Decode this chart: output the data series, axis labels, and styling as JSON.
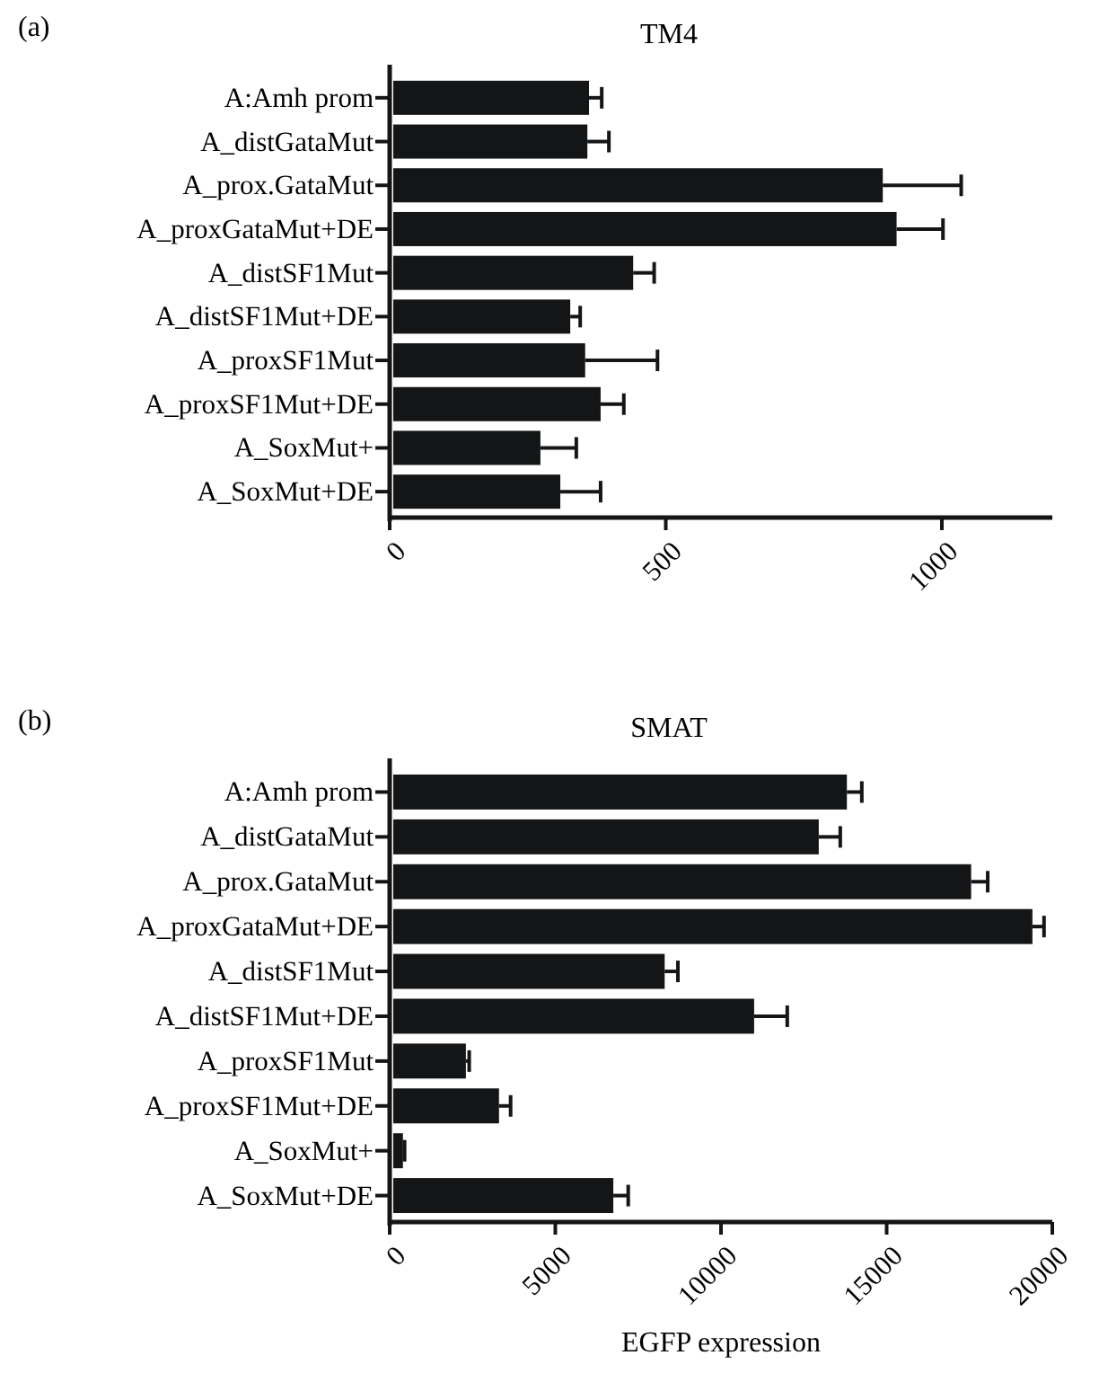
{
  "chart_data": [
    {
      "type": "bar",
      "orientation": "horizontal",
      "title": "TM4",
      "annotations": [
        "(a)"
      ],
      "categories": [
        "A:Amh prom",
        "A_distGataMut",
        "A_prox.GataMut",
        "A_proxGataMut+DE",
        "A_distSF1Mut",
        "A_distSF1Mut+DE",
        "A_proxSF1Mut",
        "A_proxSF1Mut+DE",
        "A_SoxMut+",
        "A_SoxMut+DE"
      ],
      "values": [
        361,
        358,
        893,
        918,
        441,
        327,
        354,
        382,
        273,
        309
      ],
      "errors": [
        [
          361,
          384
        ],
        [
          358,
          397
        ],
        [
          893,
          1035
        ],
        [
          918,
          1002
        ],
        [
          441,
          479
        ],
        [
          327,
          345
        ],
        [
          354,
          485
        ],
        [
          382,
          424
        ],
        [
          273,
          338
        ],
        [
          309,
          382
        ]
      ],
      "color": "#141517",
      "xlim": [
        0,
        1200
      ],
      "xticks": [
        0,
        500,
        1000
      ],
      "grid": false
    },
    {
      "type": "bar",
      "orientation": "horizontal",
      "title": "SMAT",
      "annotations": [
        "(b)"
      ],
      "xlabel": "EGFP expression",
      "categories": [
        "A:Amh prom",
        "A_distGataMut",
        "A_prox.GataMut",
        "A_proxGataMut+DE",
        "A_distSF1Mut",
        "A_distSF1Mut+DE",
        "A_proxSF1Mut",
        "A_proxSF1Mut+DE",
        "A_SoxMut+",
        "A_SoxMut+DE"
      ],
      "values": [
        13800,
        12950,
        17550,
        19400,
        8300,
        11000,
        2300,
        3300,
        400,
        6750
      ],
      "errors": [
        [
          13800,
          14250
        ],
        [
          12950,
          13600
        ],
        [
          17550,
          18050
        ],
        [
          19400,
          19750
        ],
        [
          8300,
          8700
        ],
        [
          11000,
          12000
        ],
        [
          2300,
          2400
        ],
        [
          3300,
          3650
        ],
        [
          400,
          450
        ],
        [
          6750,
          7200
        ]
      ],
      "color": "#141517",
      "xlim": [
        0,
        20000
      ],
      "xticks": [
        0,
        5000,
        10000,
        15000,
        20000
      ],
      "grid": false
    }
  ]
}
